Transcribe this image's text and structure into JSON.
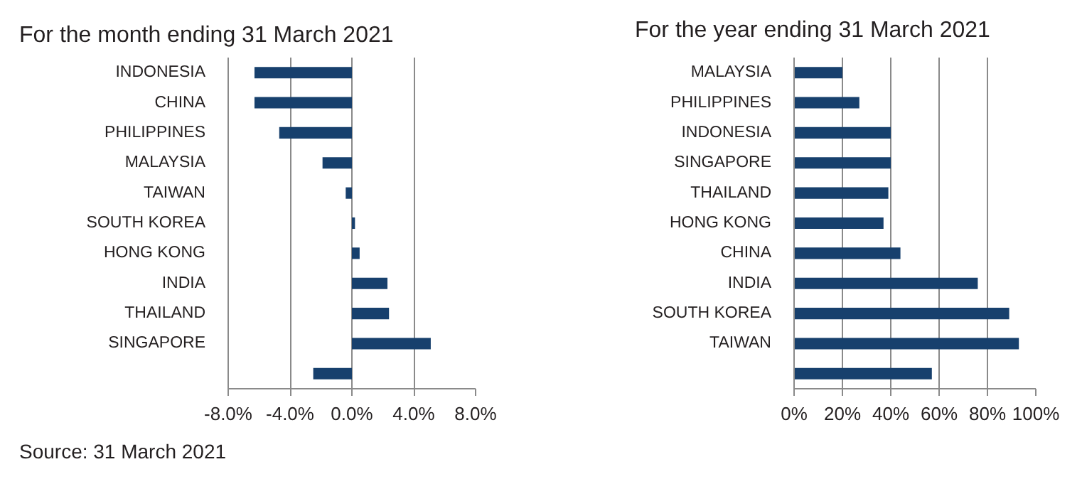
{
  "chart_data": [
    {
      "type": "bar",
      "orientation": "horizontal",
      "title": "For the month ending 31 March 2021",
      "categories": [
        "INDONESIA",
        "CHINA",
        "PHILIPPINES",
        "MALAYSIA",
        "TAIWAN",
        "SOUTH KOREA",
        "HONG KONG",
        "INDIA",
        "THAILAND",
        "SINGAPORE",
        null
      ],
      "values": [
        -6.3,
        -6.3,
        -4.7,
        -1.9,
        -0.4,
        0.2,
        0.5,
        2.3,
        2.4,
        5.1,
        -2.5
      ],
      "color": "#17406d",
      "xlim": [
        -8,
        8
      ],
      "xticks": [
        {
          "value": -8,
          "label": "-8.0%"
        },
        {
          "value": -4,
          "label": "-4.0%"
        },
        {
          "value": 0,
          "label": "0.0%"
        },
        {
          "value": 4,
          "label": "4.0%"
        },
        {
          "value": 8,
          "label": "8.0%"
        }
      ],
      "grid": "x",
      "annotations": [
        "Source: 31 March 2021"
      ]
    },
    {
      "type": "bar",
      "orientation": "horizontal",
      "title": "For the year ending 31 March 2021",
      "categories": [
        "MALAYSIA",
        "PHILIPPINES",
        "INDONESIA",
        "SINGAPORE",
        "THAILAND",
        "HONG KONG",
        "CHINA",
        "INDIA",
        "SOUTH KOREA",
        "TAIWAN",
        null
      ],
      "values": [
        20,
        27,
        40,
        40,
        39,
        37,
        44,
        76,
        89,
        93,
        57
      ],
      "color": "#17406d",
      "xlim": [
        0,
        100
      ],
      "xticks": [
        {
          "value": 0,
          "label": "0%"
        },
        {
          "value": 20,
          "label": "20%"
        },
        {
          "value": 40,
          "label": "40%"
        },
        {
          "value": 60,
          "label": "60%"
        },
        {
          "value": 80,
          "label": "80%"
        },
        {
          "value": 100,
          "label": "100%"
        }
      ],
      "grid": "x"
    }
  ]
}
